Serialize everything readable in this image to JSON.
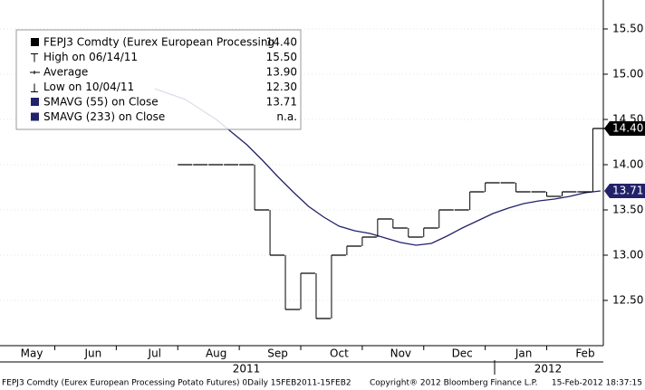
{
  "chart_data": {
    "type": "price",
    "categories": [
      null,
      null,
      "May",
      null,
      null,
      null,
      "Jun",
      null,
      null,
      null,
      "Jul",
      null,
      null,
      null,
      "Aug",
      null,
      null,
      null,
      "Sep",
      null,
      null,
      null,
      "Oct",
      null,
      null,
      null,
      "Nov",
      null,
      null,
      null,
      "Dec",
      null,
      null,
      null,
      "Jan",
      null,
      null,
      null,
      "Feb",
      null
    ],
    "years": [
      "2011",
      "2012"
    ],
    "series": [
      {
        "name": "FEPJ3 Comdty",
        "color": "#000000",
        "values": [
          null,
          null,
          null,
          null,
          null,
          null,
          null,
          null,
          null,
          null,
          null,
          null,
          14.0,
          14.0,
          14.0,
          14.0,
          14.0,
          13.5,
          13.0,
          12.4,
          12.8,
          12.3,
          13.0,
          13.1,
          13.2,
          13.4,
          13.3,
          13.2,
          13.3,
          13.5,
          13.5,
          13.7,
          13.8,
          13.8,
          13.7,
          13.7,
          13.65,
          13.7,
          13.7,
          14.4
        ],
        "value_labels": [
          null,
          null,
          null,
          null,
          null,
          null,
          null,
          null,
          null,
          null,
          null,
          null,
          null,
          null,
          null,
          null,
          null,
          null,
          null,
          null,
          null,
          null,
          null,
          null,
          null,
          null,
          null,
          null,
          null,
          null,
          null,
          null,
          null,
          null,
          null,
          null,
          null,
          null,
          null,
          "14.40"
        ]
      },
      {
        "name": "SMAVG (55) on Close",
        "color": "#22226a",
        "values": [
          null,
          null,
          null,
          null,
          null,
          null,
          null,
          null,
          null,
          null,
          14.84,
          14.78,
          14.72,
          14.61,
          14.5,
          14.36,
          14.22,
          14.05,
          13.87,
          13.7,
          13.54,
          13.42,
          13.32,
          13.27,
          13.24,
          13.19,
          13.14,
          13.11,
          13.13,
          13.21,
          13.3,
          13.38,
          13.46,
          13.52,
          13.57,
          13.6,
          13.62,
          13.65,
          13.69,
          13.71
        ],
        "value_labels": [
          null,
          null,
          null,
          null,
          null,
          null,
          null,
          null,
          null,
          null,
          null,
          null,
          null,
          null,
          null,
          null,
          null,
          null,
          null,
          null,
          null,
          null,
          null,
          null,
          null,
          null,
          null,
          null,
          null,
          null,
          null,
          null,
          null,
          null,
          null,
          null,
          null,
          null,
          null,
          "13.71"
        ]
      }
    ],
    "legend": [
      {
        "label": "FEPJ3 Comdty (Eurex European Processing",
        "value": "14.40"
      },
      {
        "label": "High on 06/14/11",
        "value": "15.50"
      },
      {
        "label": "Average",
        "value": "13.90"
      },
      {
        "label": "Low on 10/04/11",
        "value": "12.30"
      },
      {
        "label": "SMAVG (55) on Close",
        "value": "13.71"
      },
      {
        "label": "SMAVG (233) on Close",
        "value": "n.a."
      }
    ],
    "ylim": [
      12.0,
      15.82
    ],
    "yticks": [
      {
        "value": 12.5,
        "label": "12.50"
      },
      {
        "value": 13.0,
        "label": "13.00"
      },
      {
        "value": 13.5,
        "label": "13.50"
      },
      {
        "value": 14.0,
        "label": "14.00"
      },
      {
        "value": 14.5,
        "label": "14.50"
      },
      {
        "value": 15.0,
        "label": "15.00"
      },
      {
        "value": 15.5,
        "label": "15.50"
      }
    ],
    "footer": {
      "left": "FEPJ3 Comdty (Eurex European Processing Potato Futures) 0Daily 15FEB2011-15FEB2",
      "center": "Copyright® 2012 Bloomberg Finance L.P.",
      "right": "15-Feb-2012 18:37:15"
    }
  }
}
